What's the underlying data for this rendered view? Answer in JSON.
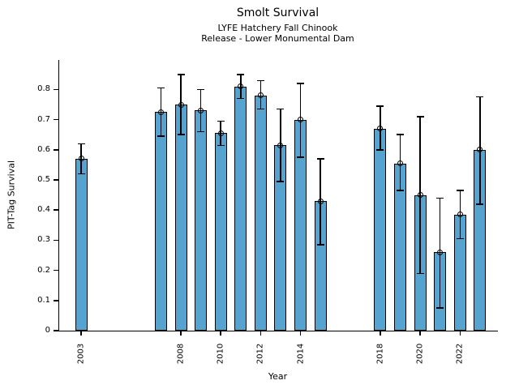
{
  "chart_data": {
    "type": "bar",
    "title": "Smolt Survival",
    "subtitle_line1": "LYFE Hatchery Fall Chinook",
    "subtitle_line2": "Release - Lower Monumental Dam",
    "xlabel": "Year",
    "ylabel": "PIT-Tag Survival",
    "categories": [
      2003,
      2007,
      2008,
      2009,
      2010,
      2011,
      2012,
      2013,
      2014,
      2015,
      2018,
      2019,
      2020,
      2021,
      2022,
      2023
    ],
    "values": [
      0.57,
      0.725,
      0.75,
      0.73,
      0.655,
      0.81,
      0.78,
      0.615,
      0.7,
      0.43,
      0.67,
      0.555,
      0.45,
      0.26,
      0.385,
      0.6
    ],
    "error_low": [
      0.52,
      0.645,
      0.65,
      0.66,
      0.615,
      0.77,
      0.735,
      0.495,
      0.575,
      0.285,
      0.6,
      0.465,
      0.19,
      0.075,
      0.305,
      0.42
    ],
    "error_high": [
      0.62,
      0.805,
      0.85,
      0.8,
      0.695,
      0.85,
      0.83,
      0.735,
      0.82,
      0.57,
      0.745,
      0.65,
      0.71,
      0.44,
      0.465,
      0.775
    ],
    "xtick_labels": [
      "2003",
      "2008",
      "2010",
      "2012",
      "2014",
      "2018",
      "2020",
      "2022"
    ],
    "xtick_years": [
      2003,
      2008,
      2010,
      2012,
      2014,
      2018,
      2020,
      2022
    ],
    "ytick_labels": [
      "0",
      "0.1",
      "0.2",
      "0.3",
      "0.4",
      "0.5",
      "0.6",
      "0.7",
      "0.8"
    ],
    "ytick_values": [
      0,
      0.1,
      0.2,
      0.3,
      0.4,
      0.5,
      0.6,
      0.7,
      0.8
    ],
    "xlim": [
      2001.9,
      2023.9
    ],
    "ylim": [
      0,
      0.898
    ],
    "bar_color": "#56a3cf",
    "edge_color": "#000000",
    "error_bar_color": "#000000",
    "marker": "open-circle",
    "grid": false,
    "legend": null,
    "background": "#ffffff"
  }
}
